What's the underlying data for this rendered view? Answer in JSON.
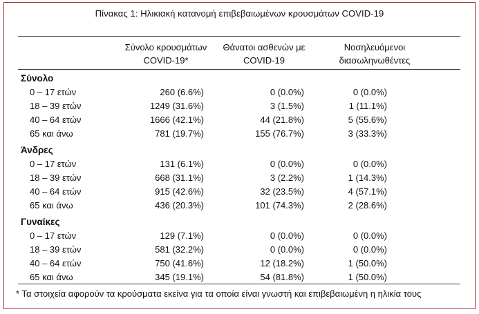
{
  "caption": "Πίνακας 1: Ηλικιακή κατανομή επιβεβαιωμένων κρουσμάτων COVID-19",
  "headers": [
    {
      "line1": "Σύνολο κρουσμάτων",
      "line2": "COVID-19*"
    },
    {
      "line1": "Θάνατοι ασθενών με",
      "line2": "COVID-19"
    },
    {
      "line1": "Νοσηλευόμενοι",
      "line2": "διασωληνωθέντες"
    }
  ],
  "sections": [
    {
      "title": "Σύνολο",
      "rows": [
        {
          "age": "0 – 17 ετών",
          "cases": "260 (6.6%)",
          "deaths": "0 (0.0%)",
          "intubated": "0 (0.0%)"
        },
        {
          "age": "18 – 39 ετών",
          "cases": "1249 (31.6%)",
          "deaths": "3 (1.5%)",
          "intubated": "1 (11.1%)"
        },
        {
          "age": "40 – 64 ετών",
          "cases": "1666 (42.1%)",
          "deaths": "44 (21.8%)",
          "intubated": "5 (55.6%)"
        },
        {
          "age": "65 και άνω",
          "cases": "781 (19.7%)",
          "deaths": "155 (76.7%)",
          "intubated": "3 (33.3%)"
        }
      ]
    },
    {
      "title": "Άνδρες",
      "rows": [
        {
          "age": "0 – 17 ετών",
          "cases": "131 (6.1%)",
          "deaths": "0 (0.0%)",
          "intubated": "0 (0.0%)"
        },
        {
          "age": "18 – 39 ετών",
          "cases": "668 (31.1%)",
          "deaths": "3 (2.2%)",
          "intubated": "1 (14.3%)"
        },
        {
          "age": "40 – 64 ετών",
          "cases": "915 (42.6%)",
          "deaths": "32 (23.5%)",
          "intubated": "4 (57.1%)"
        },
        {
          "age": "65 και άνω",
          "cases": "436 (20.3%)",
          "deaths": "101 (74.3%)",
          "intubated": "2 (28.6%)"
        }
      ]
    },
    {
      "title": "Γυναίκες",
      "rows": [
        {
          "age": "0 – 17 ετών",
          "cases": "129 (7.1%)",
          "deaths": "0 (0.0%)",
          "intubated": "0 (0.0%)"
        },
        {
          "age": "18 – 39 ετών",
          "cases": "581 (32.2%)",
          "deaths": "0 (0.0%)",
          "intubated": "0 (0.0%)"
        },
        {
          "age": "40 – 64 ετών",
          "cases": "750 (41.6%)",
          "deaths": "12 (18.2%)",
          "intubated": "1 (50.0%)"
        },
        {
          "age": "65 και άνω",
          "cases": "345 (19.1%)",
          "deaths": "54 (81.8%)",
          "intubated": "1 (50.0%)"
        }
      ]
    }
  ],
  "footnote": "* Τα στοιχεία αφορούν τα κρούσματα εκείνα για τα οποία είναι γνωστή και επιβεβαιωμένη η ηλικία τους",
  "colors": {
    "frame": "#aa3333",
    "rule": "#333333"
  }
}
